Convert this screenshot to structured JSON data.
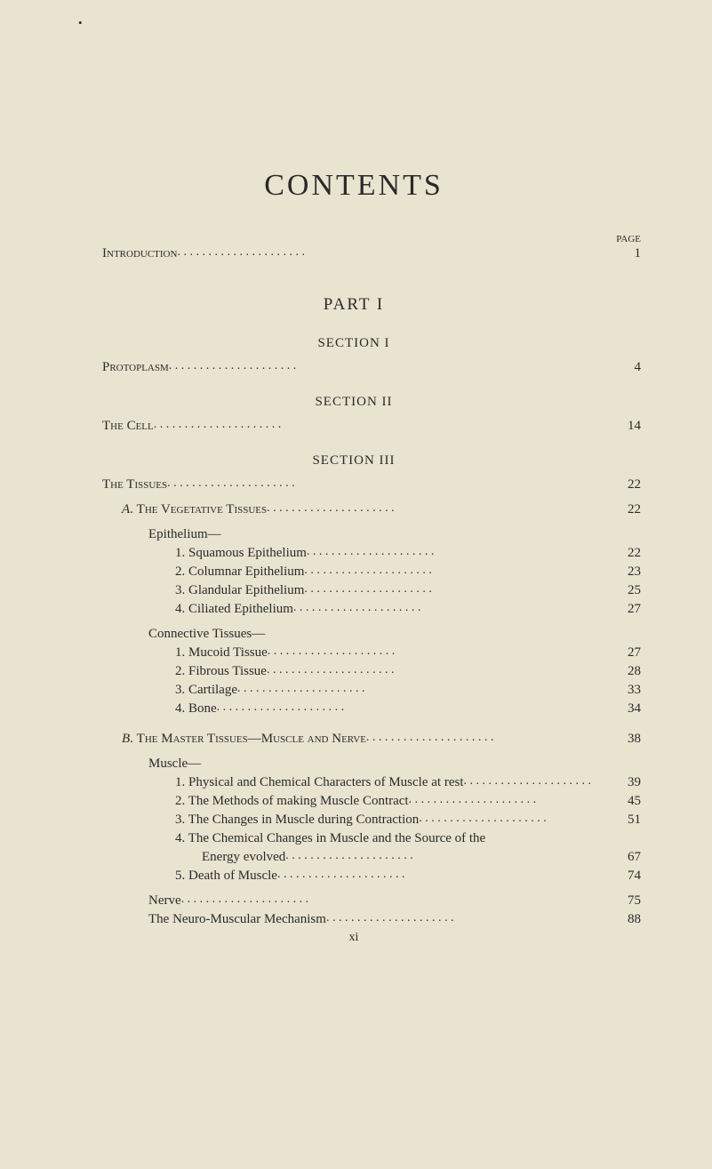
{
  "topMark": "•",
  "title": "CONTENTS",
  "pageLabel": "PAGE",
  "part": "PART I",
  "sections": {
    "s1": "SECTION I",
    "s2": "SECTION II",
    "s3": "SECTION III"
  },
  "entries": {
    "intro": {
      "label": "Introduction",
      "page": "1"
    },
    "protoplasm": {
      "label": "Protoplasm",
      "page": "4"
    },
    "cell": {
      "label": "The Cell",
      "page": "14"
    },
    "tissues": {
      "label": "The Tissues",
      "page": "22"
    },
    "vegA": {
      "label": "A. The Vegetative Tissues",
      "page": "22"
    },
    "epithelium": {
      "label": "Epithelium—"
    },
    "squamous": {
      "label": "1. Squamous Epithelium",
      "page": "22"
    },
    "columnar": {
      "label": "2. Columnar Epithelium",
      "page": "23"
    },
    "glandular": {
      "label": "3. Glandular Epithelium",
      "page": "25"
    },
    "ciliated": {
      "label": "4. Ciliated Epithelium",
      "page": "27"
    },
    "connective": {
      "label": "Connective Tissues—"
    },
    "mucoid": {
      "label": "1. Mucoid Tissue",
      "page": "27"
    },
    "fibrous": {
      "label": "2. Fibrous Tissue",
      "page": "28"
    },
    "cartilage": {
      "label": "3. Cartilage",
      "page": "33"
    },
    "bone": {
      "label": "4. Bone",
      "page": "34"
    },
    "masterB": {
      "label": "B. The Master Tissues—Muscle and Nerve",
      "page": "38"
    },
    "muscle": {
      "label": "Muscle—"
    },
    "phys": {
      "label": "1. Physical and Chemical Characters of Muscle at rest",
      "page": "39"
    },
    "methods": {
      "label": "2. The Methods of making Muscle Contract",
      "page": "45"
    },
    "changes": {
      "label": "3. The Changes in Muscle during Contraction",
      "page": "51"
    },
    "chem4": {
      "label": "4. The Chemical Changes in Muscle and the Source of the"
    },
    "energy": {
      "label": "Energy evolved",
      "page": "67"
    },
    "death": {
      "label": "5. Death of Muscle",
      "page": "74"
    },
    "nerve": {
      "label": "Nerve",
      "page": "75"
    },
    "neuro": {
      "label": "The Neuro-Muscular Mechanism",
      "page": "88"
    }
  },
  "footer": "xi"
}
